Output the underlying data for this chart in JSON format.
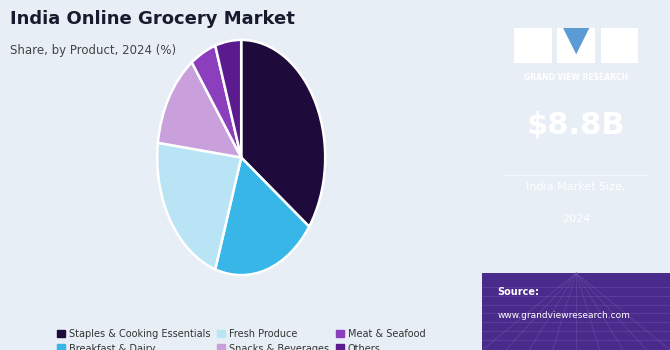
{
  "title": "India Online Grocery Market",
  "subtitle": "Share, by Product, 2024 (%)",
  "slices": [
    {
      "label": "Staples & Cooking Essentials",
      "value": 35,
      "color": "#1e0b3b"
    },
    {
      "label": "Breakfast & Dairy",
      "value": 20,
      "color": "#38b6e8"
    },
    {
      "label": "Fresh Produce",
      "value": 22,
      "color": "#b8e4f5"
    },
    {
      "label": "Snacks & Beverages",
      "value": 13,
      "color": "#c9a0dc"
    },
    {
      "label": "Meat & Seafood",
      "value": 5,
      "color": "#8b3fbd"
    },
    {
      "label": "Others",
      "value": 5,
      "color": "#5b1a8e"
    }
  ],
  "bg_left": "#e8eef5",
  "bg_right": "#3b1a6e",
  "bg_grid": "#4a2a8a",
  "right_panel_value": "$8.8B",
  "right_panel_label1": "India Market Size,",
  "right_panel_label2": "2024",
  "source_line1": "Source:",
  "source_line2": "www.grandviewresearch.com",
  "gvr_label": "GRAND VIEW RESEARCH",
  "startangle": 90
}
